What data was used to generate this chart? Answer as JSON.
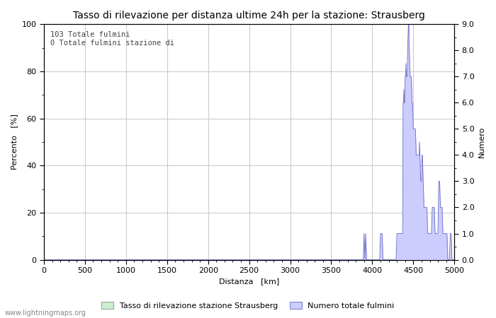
{
  "title": "Tasso di rilevazione per distanza ultime 24h per la stazione: Strausberg",
  "xlabel": "Distanza   [km]",
  "ylabel_left": "Percento   [%]",
  "ylabel_right": "Numero",
  "annotation_line1": "103 Totale fulmini",
  "annotation_line2": "0 Totale fulmini stazione di",
  "legend_label1": "Tasso di rilevazione stazione Strausberg",
  "legend_label2": "Numero totale fulmini",
  "watermark": "www.lightningmaps.org",
  "xlim": [
    0,
    5000
  ],
  "ylim_left": [
    0,
    100
  ],
  "ylim_right": [
    0.0,
    9.0
  ],
  "xticks": [
    0,
    500,
    1000,
    1500,
    2000,
    2500,
    3000,
    3500,
    4000,
    4500,
    5000
  ],
  "yticks_left": [
    0,
    20,
    40,
    60,
    80,
    100
  ],
  "yticks_right": [
    0.0,
    1.0,
    2.0,
    3.0,
    4.0,
    5.0,
    6.0,
    7.0,
    8.0,
    9.0
  ],
  "fill_color_green": "#cceecc",
  "fill_color_blue": "#ccccff",
  "line_color_blue": "#7777cc",
  "background_color": "#ffffff",
  "grid_color": "#cccccc",
  "title_fontsize": 10,
  "axis_fontsize": 8,
  "tick_fontsize": 8,
  "lightning_data": [
    [
      0,
      0.0
    ],
    [
      3800,
      0.0
    ],
    [
      3850,
      0.0
    ],
    [
      3870,
      0.0
    ],
    [
      3890,
      0.0
    ],
    [
      3900,
      1.0
    ],
    [
      3910,
      0.0
    ],
    [
      3920,
      1.0
    ],
    [
      3930,
      0.0
    ],
    [
      3980,
      0.0
    ],
    [
      3990,
      0.0
    ],
    [
      4000,
      0.0
    ],
    [
      4010,
      0.0
    ],
    [
      4020,
      0.0
    ],
    [
      4030,
      0.0
    ],
    [
      4050,
      0.0
    ],
    [
      4060,
      0.0
    ],
    [
      4070,
      0.0
    ],
    [
      4080,
      0.0
    ],
    [
      4090,
      0.0
    ],
    [
      4100,
      1.0
    ],
    [
      4110,
      1.0
    ],
    [
      4120,
      1.0
    ],
    [
      4130,
      0.0
    ],
    [
      4140,
      0.0
    ],
    [
      4150,
      0.0
    ],
    [
      4160,
      0.0
    ],
    [
      4170,
      0.0
    ],
    [
      4200,
      0.0
    ],
    [
      4210,
      0.0
    ],
    [
      4220,
      0.0
    ],
    [
      4230,
      0.0
    ],
    [
      4240,
      0.0
    ],
    [
      4250,
      0.0
    ],
    [
      4260,
      0.0
    ],
    [
      4270,
      0.0
    ],
    [
      4280,
      0.0
    ],
    [
      4290,
      0.0
    ],
    [
      4300,
      1.0
    ],
    [
      4310,
      1.0
    ],
    [
      4320,
      1.0
    ],
    [
      4330,
      1.0
    ],
    [
      4340,
      1.0
    ],
    [
      4350,
      1.0
    ],
    [
      4360,
      1.0
    ],
    [
      4370,
      1.0
    ],
    [
      4375,
      6.0
    ],
    [
      4380,
      6.0
    ],
    [
      4385,
      6.5
    ],
    [
      4390,
      6.0
    ],
    [
      4395,
      6.0
    ],
    [
      4400,
      7.0
    ],
    [
      4405,
      7.0
    ],
    [
      4410,
      7.5
    ],
    [
      4415,
      7.0
    ],
    [
      4420,
      7.0
    ],
    [
      4425,
      7.0
    ],
    [
      4430,
      8.0
    ],
    [
      4435,
      8.5
    ],
    [
      4440,
      9.0
    ],
    [
      4445,
      9.0
    ],
    [
      4450,
      8.0
    ],
    [
      4455,
      7.5
    ],
    [
      4460,
      7.0
    ],
    [
      4465,
      7.0
    ],
    [
      4470,
      7.0
    ],
    [
      4475,
      7.0
    ],
    [
      4480,
      6.5
    ],
    [
      4485,
      6.0
    ],
    [
      4490,
      6.0
    ],
    [
      4495,
      5.5
    ],
    [
      4500,
      5.0
    ],
    [
      4505,
      5.0
    ],
    [
      4510,
      5.0
    ],
    [
      4515,
      5.0
    ],
    [
      4520,
      5.0
    ],
    [
      4525,
      5.0
    ],
    [
      4530,
      4.5
    ],
    [
      4535,
      4.0
    ],
    [
      4540,
      4.0
    ],
    [
      4545,
      4.0
    ],
    [
      4550,
      4.0
    ],
    [
      4555,
      4.0
    ],
    [
      4560,
      4.0
    ],
    [
      4565,
      4.0
    ],
    [
      4570,
      4.0
    ],
    [
      4575,
      4.5
    ],
    [
      4580,
      4.0
    ],
    [
      4585,
      3.5
    ],
    [
      4590,
      3.0
    ],
    [
      4595,
      3.0
    ],
    [
      4600,
      3.0
    ],
    [
      4605,
      4.0
    ],
    [
      4610,
      4.0
    ],
    [
      4615,
      3.5
    ],
    [
      4620,
      3.0
    ],
    [
      4625,
      2.5
    ],
    [
      4630,
      2.0
    ],
    [
      4635,
      2.0
    ],
    [
      4640,
      2.0
    ],
    [
      4645,
      2.0
    ],
    [
      4650,
      2.0
    ],
    [
      4655,
      2.0
    ],
    [
      4660,
      2.0
    ],
    [
      4665,
      2.0
    ],
    [
      4670,
      1.5
    ],
    [
      4675,
      1.0
    ],
    [
      4680,
      1.0
    ],
    [
      4685,
      1.0
    ],
    [
      4690,
      1.0
    ],
    [
      4695,
      1.0
    ],
    [
      4700,
      1.0
    ],
    [
      4705,
      1.0
    ],
    [
      4710,
      1.0
    ],
    [
      4715,
      1.0
    ],
    [
      4720,
      1.0
    ],
    [
      4725,
      1.5
    ],
    [
      4730,
      2.0
    ],
    [
      4735,
      2.0
    ],
    [
      4740,
      2.0
    ],
    [
      4745,
      2.0
    ],
    [
      4750,
      2.0
    ],
    [
      4755,
      2.0
    ],
    [
      4760,
      1.5
    ],
    [
      4765,
      1.0
    ],
    [
      4770,
      1.0
    ],
    [
      4775,
      1.0
    ],
    [
      4780,
      1.0
    ],
    [
      4785,
      1.0
    ],
    [
      4790,
      1.0
    ],
    [
      4795,
      1.0
    ],
    [
      4800,
      1.0
    ],
    [
      4805,
      2.0
    ],
    [
      4810,
      3.0
    ],
    [
      4815,
      3.0
    ],
    [
      4820,
      3.0
    ],
    [
      4825,
      2.5
    ],
    [
      4830,
      2.0
    ],
    [
      4835,
      2.0
    ],
    [
      4840,
      2.0
    ],
    [
      4845,
      2.0
    ],
    [
      4850,
      2.0
    ],
    [
      4855,
      1.5
    ],
    [
      4860,
      1.0
    ],
    [
      4865,
      1.0
    ],
    [
      4870,
      1.0
    ],
    [
      4875,
      1.0
    ],
    [
      4880,
      1.0
    ],
    [
      4885,
      1.0
    ],
    [
      4890,
      1.0
    ],
    [
      4895,
      1.0
    ],
    [
      4900,
      1.0
    ],
    [
      4905,
      1.0
    ],
    [
      4910,
      1.0
    ],
    [
      4915,
      0.5
    ],
    [
      4920,
      0.0
    ],
    [
      4930,
      0.0
    ],
    [
      4940,
      0.0
    ],
    [
      4950,
      1.0
    ],
    [
      4960,
      1.0
    ],
    [
      4965,
      0.5
    ],
    [
      4970,
      0.0
    ],
    [
      4980,
      0.0
    ],
    [
      4990,
      0.0
    ],
    [
      5000,
      0.0
    ]
  ]
}
